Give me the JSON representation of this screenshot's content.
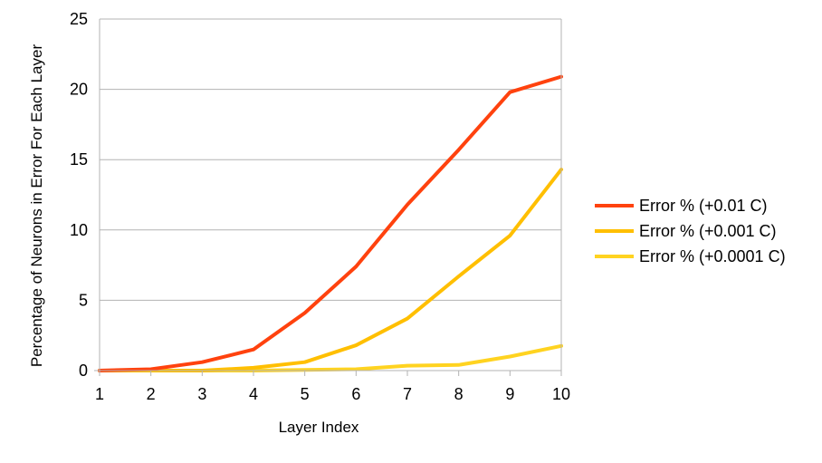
{
  "chart_data": {
    "type": "line",
    "title": "",
    "xlabel": "Layer Index",
    "ylabel": "Percentage of Neurons in Error For Each Layer",
    "x": [
      1,
      2,
      3,
      4,
      5,
      6,
      7,
      8,
      9,
      10
    ],
    "xlim": [
      1,
      10
    ],
    "ylim": [
      0,
      25
    ],
    "yticks": [
      0,
      5,
      10,
      15,
      20,
      25
    ],
    "grid": true,
    "legend_position": "right",
    "series": [
      {
        "name": "Error % (+0.01 C)",
        "color": "#ff420e",
        "values": [
          0,
          0.1,
          0.6,
          1.5,
          4.1,
          7.4,
          11.8,
          15.7,
          19.8,
          20.9
        ]
      },
      {
        "name": "Error % (+0.001 C)",
        "color": "#ffbf00",
        "values": [
          0,
          0,
          0,
          0.2,
          0.6,
          1.8,
          3.7,
          6.7,
          9.6,
          14.3
        ]
      },
      {
        "name": "Error % (+0.0001 C)",
        "color": "#ffd320",
        "values": [
          0,
          0,
          0,
          0,
          0.05,
          0.1,
          0.35,
          0.4,
          1.0,
          1.75
        ]
      }
    ]
  }
}
